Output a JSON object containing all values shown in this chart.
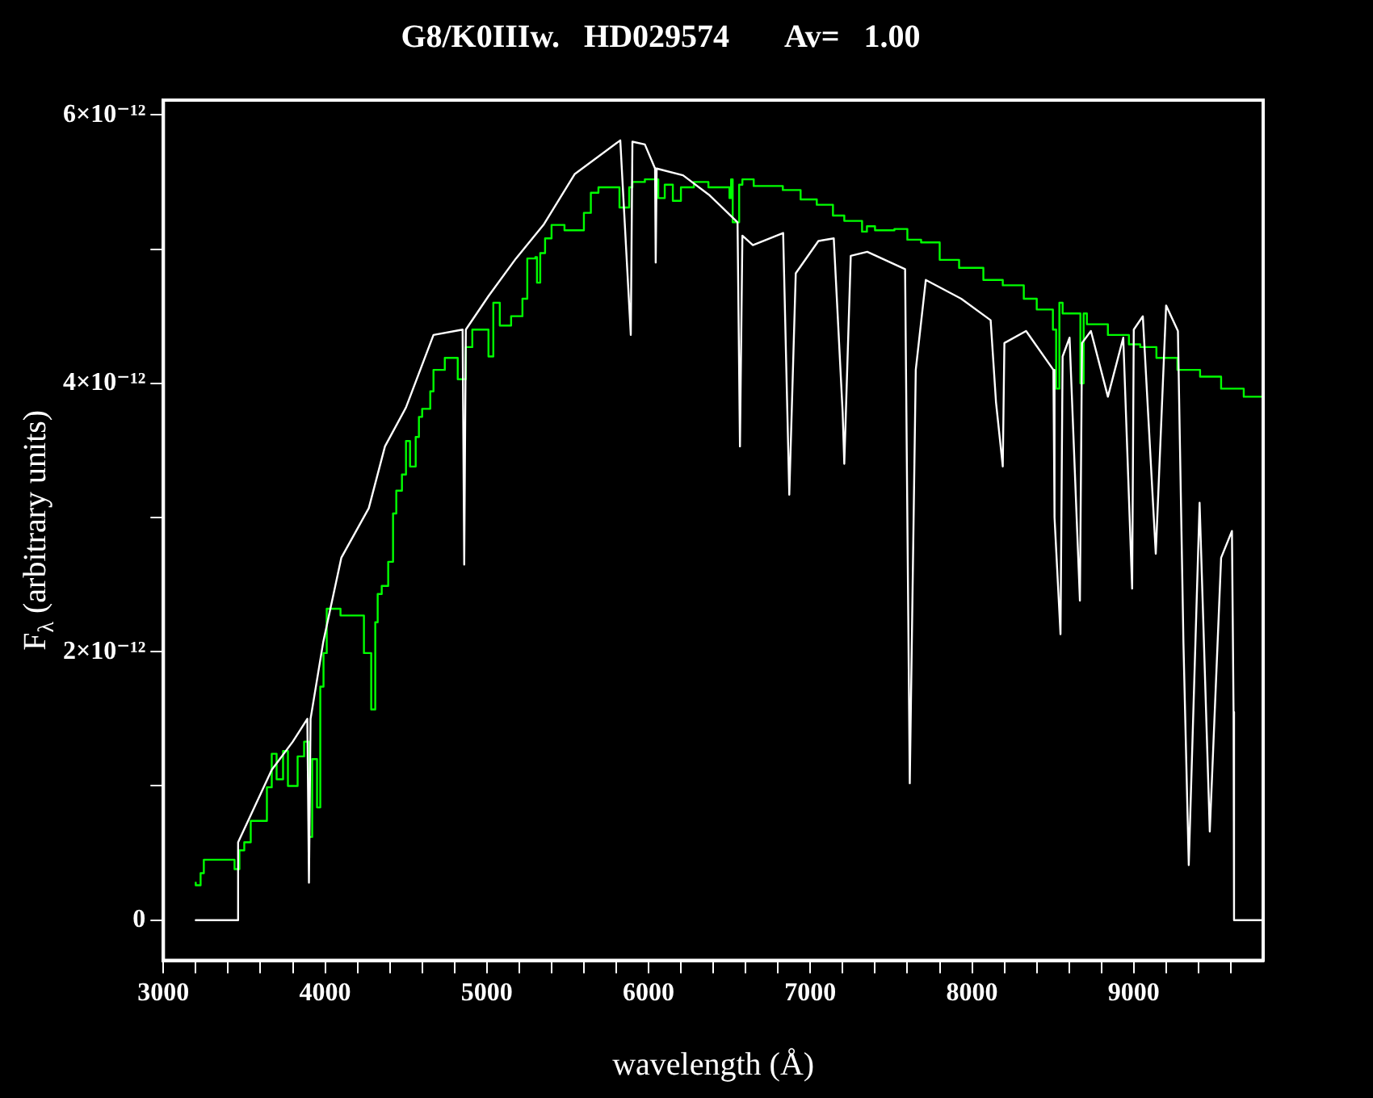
{
  "chart_data": {
    "type": "line",
    "title": "G8/K0IIIw.   HD029574       Av=   1.00",
    "xlabel": "wavelength (Å)",
    "ylabel": "F$_{λ}$ (arbitrary units)",
    "xlim": [
      3000,
      9800
    ],
    "xticks": [
      3000,
      {
        "value": 3200,
        "label": null
      },
      {
        "value": 3400,
        "label": null
      },
      {
        "value": 3600,
        "label": null
      },
      {
        "value": 3800,
        "label": null
      },
      4000,
      {
        "value": 4200,
        "label": null
      },
      {
        "value": 4400,
        "label": null
      },
      {
        "value": 4600,
        "label": null
      },
      {
        "value": 4800,
        "label": null
      },
      5000,
      {
        "value": 5200,
        "label": null
      },
      {
        "value": 5400,
        "label": null
      },
      {
        "value": 5600,
        "label": null
      },
      {
        "value": 5800,
        "label": null
      },
      6000,
      {
        "value": 6200,
        "label": null
      },
      {
        "value": 6400,
        "label": null
      },
      {
        "value": 6600,
        "label": null
      },
      {
        "value": 6800,
        "label": null
      },
      7000,
      {
        "value": 7200,
        "label": null
      },
      {
        "value": 7400,
        "label": null
      },
      {
        "value": 7600,
        "label": null
      },
      {
        "value": 7800,
        "label": null
      },
      8000,
      {
        "value": 8200,
        "label": null
      },
      {
        "value": 8400,
        "label": null
      },
      {
        "value": 8600,
        "label": null
      },
      {
        "value": 8800,
        "label": null
      },
      9000,
      {
        "value": 9200,
        "label": null
      },
      {
        "value": 9400,
        "label": null
      },
      {
        "value": 9600,
        "label": null
      }
    ],
    "ylim": [
      -3e-13,
      6.11e-12
    ],
    "yticks": [
      0,
      {
        "value": 1e-12,
        "label": null
      },
      {
        "value": 2e-12,
        "label": "2×10⁻¹²"
      },
      {
        "value": 3e-12,
        "label": null
      },
      {
        "value": 4e-12,
        "label": "4×10⁻¹²"
      },
      {
        "value": 5e-12,
        "label": null
      },
      {
        "value": 6e-12,
        "label": "6×10⁻¹²"
      }
    ],
    "grid": false,
    "legend": false,
    "marker": "none",
    "line_style": "solid",
    "series": [
      {
        "color": "#ffffff",
        "x": [
          3200,
          3460,
          3462,
          3670,
          3800,
          3890,
          3900,
          3910,
          3988,
          4100,
          4270,
          4370,
          4500,
          4670,
          4850,
          4860,
          4870,
          5010,
          5180,
          5350,
          5544,
          5825,
          5890,
          5900,
          5977,
          6040,
          6044,
          6050,
          6213,
          6378,
          6550,
          6565,
          6580,
          6645,
          6832,
          6870,
          6910,
          7050,
          7145,
          7200,
          7210,
          7250,
          7352,
          7586,
          7615,
          7652,
          7714,
          7933,
          8115,
          8148,
          8190,
          8200,
          8334,
          8503,
          8510,
          8547,
          8560,
          8603,
          8667,
          8680,
          8735,
          8840,
          8935,
          8990,
          9000,
          9056,
          9136,
          9200,
          9273,
          9307,
          9340,
          9407,
          9470,
          9540,
          9607,
          9617,
          9620,
          9794
        ],
        "values": [
          0,
          0,
          5.8e-13,
          1.12e-12,
          1.33e-12,
          1.5e-12,
          2.8e-13,
          1.5e-12,
          2.07e-12,
          2.7e-12,
          3.07e-12,
          3.53e-12,
          3.82e-12,
          4.36e-12,
          4.4e-12,
          2.65e-12,
          4.4e-12,
          4.65e-12,
          4.93e-12,
          5.18e-12,
          5.56e-12,
          5.81e-12,
          4.36e-12,
          5.8e-12,
          5.78e-12,
          5.6e-12,
          4.9e-12,
          5.6e-12,
          5.55e-12,
          5.4e-12,
          5.2e-12,
          3.53e-12,
          5.1e-12,
          5.03e-12,
          5.12e-12,
          3.17e-12,
          4.82e-12,
          5.06e-12,
          5.08e-12,
          3.78e-12,
          3.4e-12,
          4.95e-12,
          4.98e-12,
          4.85e-12,
          1.02e-12,
          4.1e-12,
          4.77e-12,
          4.63e-12,
          4.47e-12,
          3.86e-12,
          3.38e-12,
          4.3e-12,
          4.39e-12,
          4.1e-12,
          3e-12,
          2.13e-12,
          4.2e-12,
          4.34e-12,
          2.38e-12,
          4.3e-12,
          4.39e-12,
          3.9e-12,
          4.34e-12,
          2.47e-12,
          4.4e-12,
          4.5e-12,
          2.73e-12,
          4.58e-12,
          4.39e-12,
          2.07e-12,
          4.1e-13,
          3.11e-12,
          6.6e-13,
          2.7e-12,
          2.9e-12,
          1.55e-12,
          0,
          0
        ]
      },
      {
        "type": "step",
        "color": "#00ff00",
        "x": [
          3200,
          3230,
          3250,
          3270,
          3440,
          3470,
          3500,
          3540,
          3640,
          3670,
          3700,
          3740,
          3770,
          3830,
          3870,
          3900,
          3920,
          3950,
          3970,
          3990,
          4010,
          4095,
          4240,
          4285,
          4310,
          4325,
          4350,
          4390,
          4420,
          4440,
          4475,
          4500,
          4525,
          4560,
          4580,
          4600,
          4650,
          4670,
          4740,
          4820,
          4870,
          4910,
          5010,
          5040,
          5080,
          5150,
          5220,
          5250,
          5300,
          5310,
          5330,
          5360,
          5400,
          5480,
          5600,
          5643,
          5690,
          5820,
          5880,
          5900,
          5977,
          6060,
          6100,
          6150,
          6200,
          6280,
          6370,
          6500,
          6510,
          6520,
          6560,
          6580,
          6650,
          6830,
          6940,
          7040,
          7140,
          7210,
          7320,
          7350,
          7400,
          7520,
          7600,
          7685,
          7800,
          7920,
          8070,
          8190,
          8320,
          8400,
          8500,
          8520,
          8540,
          8560,
          8670,
          8690,
          8710,
          8840,
          8970,
          9040,
          9140,
          9270,
          9410,
          9540,
          9680,
          9790
        ],
        "values": [
          2.8e-13,
          2.6e-13,
          3.5e-13,
          4.5e-13,
          4.5e-13,
          3.8e-13,
          5.2e-13,
          5.8e-13,
          7.4e-13,
          9.9e-13,
          1.24e-12,
          1.05e-12,
          1.26e-12,
          1e-12,
          1.22e-12,
          1.33e-12,
          6.2e-13,
          1.2e-12,
          8.4e-13,
          1.74e-12,
          1.99e-12,
          2.32e-12,
          2.27e-12,
          1.99e-12,
          1.57e-12,
          2.22e-12,
          2.43e-12,
          2.49e-12,
          2.67e-12,
          3.03e-12,
          3.2e-12,
          3.32e-12,
          3.57e-12,
          3.38e-12,
          3.6e-12,
          3.75e-12,
          3.81e-12,
          3.94e-12,
          4.1e-12,
          4.19e-12,
          4.03e-12,
          4.27e-12,
          4.4e-12,
          4.2e-12,
          4.6e-12,
          4.43e-12,
          4.5e-12,
          4.63e-12,
          4.93e-12,
          4.94e-12,
          4.75e-12,
          4.97e-12,
          5.08e-12,
          5.18e-12,
          5.14e-12,
          5.27e-12,
          5.42e-12,
          5.46e-12,
          5.31e-12,
          5.46e-12,
          5.5e-12,
          5.52e-12,
          5.38e-12,
          5.48e-12,
          5.36e-12,
          5.46e-12,
          5.5e-12,
          5.46e-12,
          5.38e-12,
          5.52e-12,
          5.2e-12,
          5.48e-12,
          5.52e-12,
          5.47e-12,
          5.44e-12,
          5.37e-12,
          5.33e-12,
          5.25e-12,
          5.21e-12,
          5.13e-12,
          5.17e-12,
          5.14e-12,
          5.15e-12,
          5.07e-12,
          5.05e-12,
          4.92e-12,
          4.86e-12,
          4.77e-12,
          4.73e-12,
          4.63e-12,
          4.55e-12,
          4.4e-12,
          3.96e-12,
          4.6e-12,
          4.52e-12,
          4e-12,
          4.52e-12,
          4.44e-12,
          4.36e-12,
          4.29e-12,
          4.27e-12,
          4.19e-12,
          4.1e-12,
          4.05e-12,
          3.96e-12,
          3.9e-12
        ]
      }
    ]
  }
}
